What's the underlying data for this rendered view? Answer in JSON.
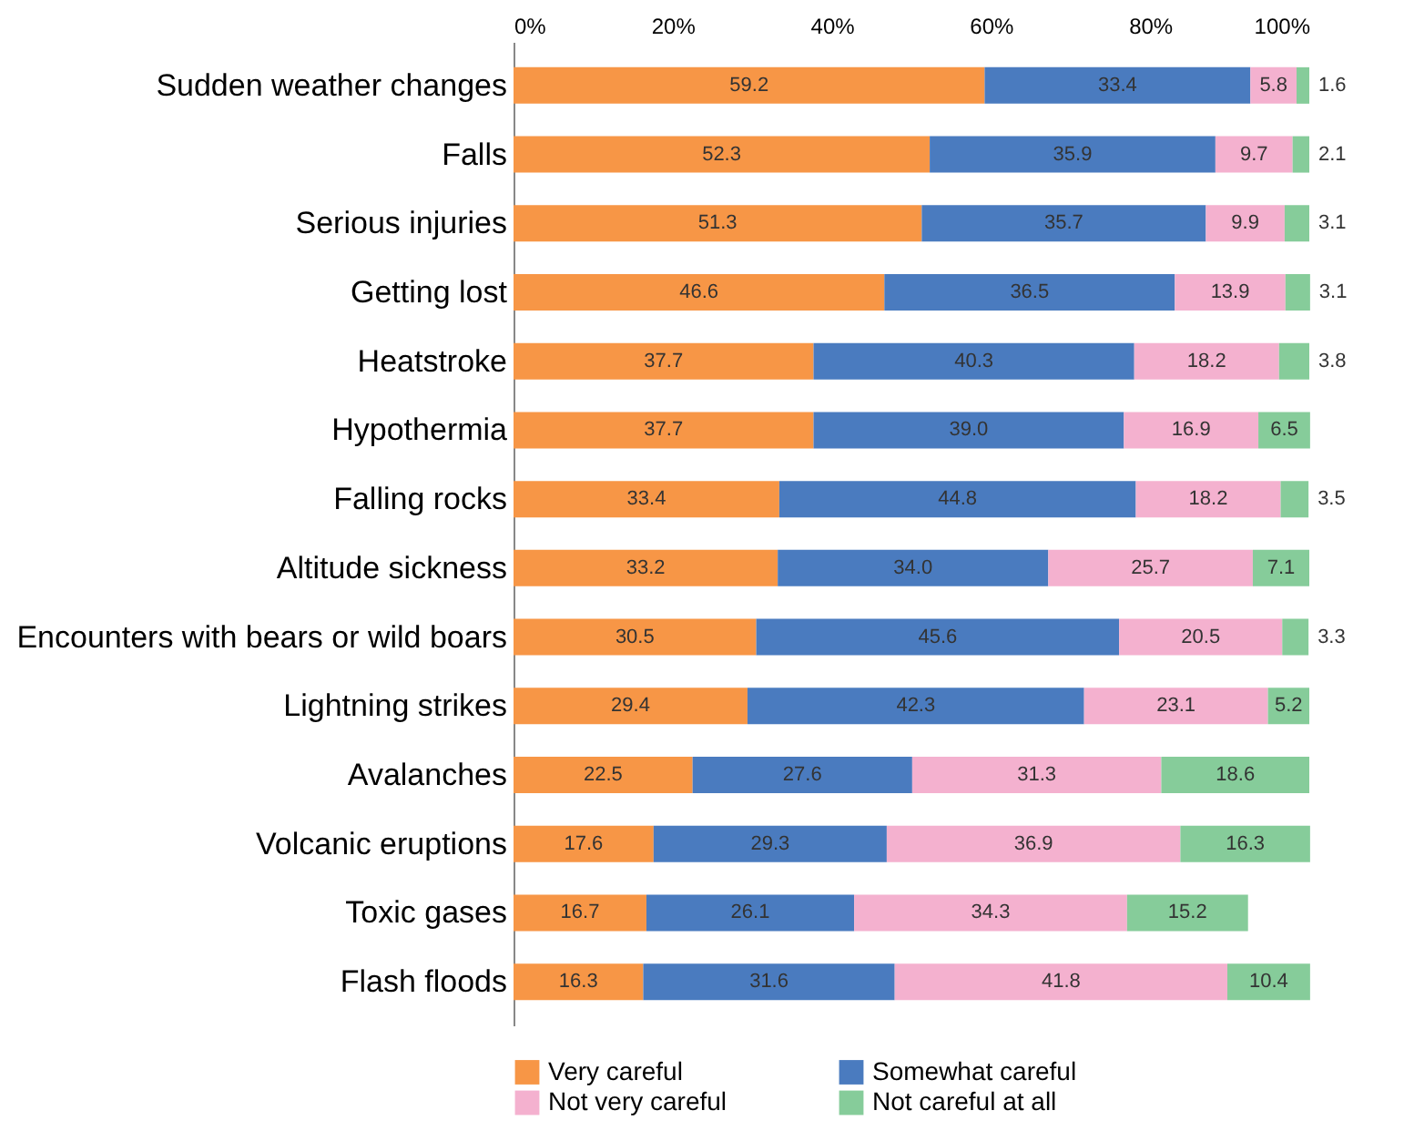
{
  "chart_data": {
    "type": "bar",
    "orientation": "horizontal",
    "stacked": true,
    "data_labels": true,
    "legend": "bottom",
    "grid": false,
    "categories": [
      "Sudden weather changes",
      "Falls",
      "Serious injuries",
      "Getting lost",
      "Heatstroke",
      "Hypothermia",
      "Falling rocks",
      "Altitude sickness",
      "Encounters with bears or wild boars",
      "Lightning strikes",
      "Avalanches",
      "Volcanic eruptions",
      "Toxic gases",
      "Flash floods"
    ],
    "series": [
      {
        "name": "Very careful",
        "color": "#f79646",
        "values": [
          59.2,
          52.3,
          51.3,
          46.6,
          37.7,
          37.7,
          33.4,
          33.2,
          30.5,
          29.4,
          22.5,
          17.6,
          16.7,
          16.3
        ]
      },
      {
        "name": "Somewhat careful",
        "color": "#4a7bbf",
        "values": [
          33.4,
          35.9,
          35.7,
          36.5,
          40.3,
          39.0,
          44.8,
          34.0,
          45.6,
          42.3,
          27.6,
          29.3,
          26.1,
          31.6
        ],
        "value_labels": [
          "33.4",
          "35.9",
          "35.7",
          "36.5",
          "40.3",
          "39.0",
          "44.8",
          "34.0",
          "45.6",
          "42.3",
          "27.6",
          "29.3",
          "26.1",
          "31.6"
        ]
      },
      {
        "name": "Not very careful",
        "color": "#f4b1cf",
        "values": [
          5.8,
          9.7,
          9.9,
          13.9,
          18.2,
          16.9,
          18.2,
          25.7,
          20.5,
          23.1,
          31.3,
          36.9,
          34.3,
          41.8
        ]
      },
      {
        "name": "Not careful at all",
        "color": "#86cc9a",
        "values": [
          1.6,
          2.1,
          3.1,
          3.1,
          3.8,
          6.5,
          3.5,
          7.1,
          3.3,
          5.2,
          18.6,
          16.3,
          15.2,
          10.4
        ]
      }
    ],
    "xlim": [
      0,
      100
    ],
    "xticks": [
      {
        "value": 0,
        "label": "0%"
      },
      {
        "value": 20,
        "label": "20%"
      },
      {
        "value": 40,
        "label": "40%"
      },
      {
        "value": 60,
        "label": "60%"
      },
      {
        "value": 80,
        "label": "80%"
      },
      {
        "value": 100,
        "label": "100%"
      }
    ]
  }
}
